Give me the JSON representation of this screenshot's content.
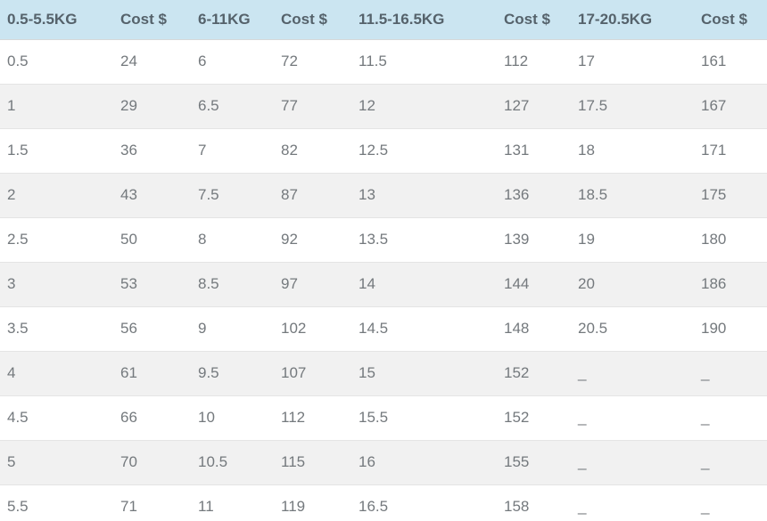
{
  "chart_data": {
    "type": "table",
    "columns": [
      "0.5-5.5KG",
      "Cost $",
      "6-11KG",
      "Cost $",
      "11.5-16.5KG",
      "Cost $",
      "17-20.5KG",
      "Cost $"
    ],
    "rows": [
      [
        "0.5",
        "24",
        "6",
        "72",
        "11.5",
        "112",
        "17",
        "161"
      ],
      [
        "1",
        "29",
        "6.5",
        "77",
        "12",
        "127",
        "17.5",
        "167"
      ],
      [
        "1.5",
        "36",
        "7",
        "82",
        "12.5",
        "131",
        "18",
        "171"
      ],
      [
        "2",
        "43",
        "7.5",
        "87",
        "13",
        "136",
        "18.5",
        "175"
      ],
      [
        "2.5",
        "50",
        "8",
        "92",
        "13.5",
        "139",
        "19",
        "180"
      ],
      [
        "3",
        "53",
        "8.5",
        "97",
        "14",
        "144",
        "20",
        "186"
      ],
      [
        "3.5",
        "56",
        "9",
        "102",
        "14.5",
        "148",
        "20.5",
        "190"
      ],
      [
        "4",
        "61",
        "9.5",
        "107",
        "15",
        "152",
        "_",
        "_"
      ],
      [
        "4.5",
        "66",
        "10",
        "112",
        "15.5",
        "152",
        "_",
        "_"
      ],
      [
        "5",
        "70",
        "10.5",
        "115",
        "16",
        "155",
        "_",
        "_"
      ],
      [
        "5.5",
        "71",
        "11",
        "119",
        "16.5",
        "158",
        "_",
        "_"
      ]
    ],
    "layout_hints": {
      "header_row": true,
      "zebra_striping": true,
      "last_row_clipped_by_viewport": true
    }
  },
  "style": {
    "header_bg": "#cbe5f1",
    "header_text": "#55626b",
    "body_text": "#74797d",
    "row_alt_bg": "#f1f1f1",
    "row_border": "#e4e4e4"
  }
}
